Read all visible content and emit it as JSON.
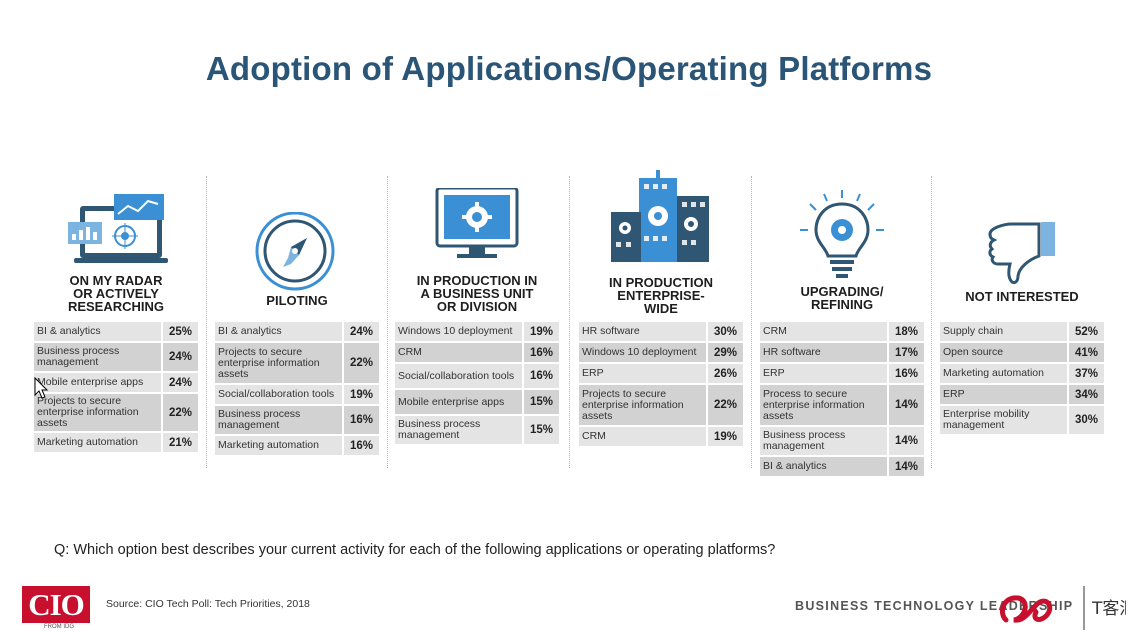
{
  "title": "Adoption of Applications/Operating Platforms",
  "chart_data": {
    "type": "table",
    "title": "Adoption of Applications/Operating Platforms",
    "columns": [
      {
        "heading": "ON MY RADAR\nOR ACTIVELY\nRESEARCHING",
        "icon": "laptop-analytics-icon",
        "rows": [
          {
            "label": "BI & analytics",
            "value": "25%"
          },
          {
            "label": "Business process management",
            "value": "24%"
          },
          {
            "label": "Mobile enterprise apps",
            "value": "24%"
          },
          {
            "label": "Projects to secure enterprise information assets",
            "value": "22%"
          },
          {
            "label": "Marketing automation",
            "value": "21%"
          }
        ]
      },
      {
        "heading": "PILOTING",
        "icon": "compass-icon",
        "rows": [
          {
            "label": "BI & analytics",
            "value": "24%"
          },
          {
            "label": "Projects to secure enterprise information assets",
            "value": "22%"
          },
          {
            "label": "Social/collaboration tools",
            "value": "19%"
          },
          {
            "label": "Business process management",
            "value": "16%"
          },
          {
            "label": "Marketing automation",
            "value": "16%"
          }
        ]
      },
      {
        "heading": "IN PRODUCTION IN\nA BUSINESS UNIT\nOR DIVISION",
        "icon": "monitor-gear-icon",
        "rows": [
          {
            "label": "Windows 10 deployment",
            "value": "19%"
          },
          {
            "label": "CRM",
            "value": "16%"
          },
          {
            "label": "Social/collaboration tools",
            "value": "16%"
          },
          {
            "label": "Mobile enterprise apps",
            "value": "15%"
          },
          {
            "label": "Business process management",
            "value": "15%"
          }
        ]
      },
      {
        "heading": "IN PRODUCTION\nENTERPRISE-\nWIDE",
        "icon": "buildings-icon",
        "rows": [
          {
            "label": "HR software",
            "value": "30%"
          },
          {
            "label": "Windows 10 deployment",
            "value": "29%"
          },
          {
            "label": "ERP",
            "value": "26%"
          },
          {
            "label": "Projects to secure enterprise information assets",
            "value": "22%"
          },
          {
            "label": "CRM",
            "value": "19%"
          }
        ]
      },
      {
        "heading": "UPGRADING/\nREFINING",
        "icon": "lightbulb-gear-icon",
        "rows": [
          {
            "label": "CRM",
            "value": "18%"
          },
          {
            "label": "HR software",
            "value": "17%"
          },
          {
            "label": "ERP",
            "value": "16%"
          },
          {
            "label": "Process to secure enterprise information assets",
            "value": "14%"
          },
          {
            "label": "Business process management",
            "value": "14%"
          },
          {
            "label": "BI & analytics",
            "value": "14%"
          }
        ]
      },
      {
        "heading": "NOT INTERESTED",
        "icon": "thumbs-down-icon",
        "rows": [
          {
            "label": "Supply chain",
            "value": "52%"
          },
          {
            "label": "Open source",
            "value": "41%"
          },
          {
            "label": "Marketing automation",
            "value": "37%"
          },
          {
            "label": "ERP",
            "value": "34%"
          },
          {
            "label": "Enterprise mobility management",
            "value": "30%"
          }
        ]
      }
    ]
  },
  "question": "Q: Which option best describes your current activity for each of the following applications or operating platforms?",
  "source": "Source: CIO Tech Poll: Tech Priorities, 2018",
  "logo": {
    "text": "CIO",
    "sub": "FROM IDG"
  },
  "tagline": "BUSINESS TECHNOLOGY LEADERSHIP",
  "colors": {
    "title": "#2a5576",
    "icon_blue": "#3b8fd4",
    "icon_dark": "#2f5673",
    "row_light": "#e4e4e4",
    "row_dark": "#d2d2d2",
    "logo_red": "#c8102e"
  }
}
